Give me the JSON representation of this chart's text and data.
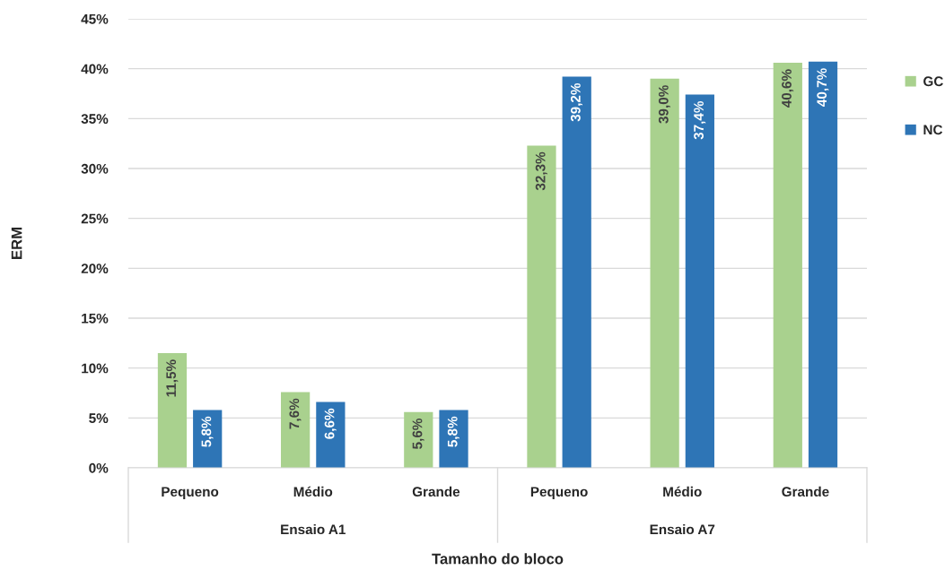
{
  "chart_data": {
    "type": "bar",
    "xlabel": "Tamanho do bloco",
    "ylabel": "ERM",
    "categories": [
      "Pequeno",
      "Médio",
      "Grande",
      "Pequeno",
      "Médio",
      "Grande"
    ],
    "annotations": [
      "Ensaio A1",
      "Ensaio A7"
    ],
    "series": [
      {
        "name": "GC",
        "color": "#a9d18e",
        "values": [
          11.5,
          7.6,
          5.6,
          32.3,
          39.0,
          40.6
        ],
        "value_labels": [
          "11,5%",
          "7,6%",
          "5,6%",
          "32,3%",
          "39,0%",
          "40,6%"
        ]
      },
      {
        "name": "NC",
        "color": "#2e75b6",
        "values": [
          5.8,
          6.6,
          5.8,
          39.2,
          37.4,
          40.7
        ],
        "value_labels": [
          "5,8%",
          "6,6%",
          "5,8%",
          "39,2%",
          "37,4%",
          "40,7%"
        ]
      }
    ],
    "ylim": [
      0,
      45
    ],
    "yticks": [
      {
        "value": 0,
        "label": "0%"
      },
      {
        "value": 5,
        "label": "5%"
      },
      {
        "value": 10,
        "label": "10%"
      },
      {
        "value": 15,
        "label": "15%"
      },
      {
        "value": 20,
        "label": "20%"
      },
      {
        "value": 25,
        "label": "25%"
      },
      {
        "value": 30,
        "label": "30%"
      },
      {
        "value": 35,
        "label": "35%"
      },
      {
        "value": 40,
        "label": "40%"
      },
      {
        "value": 45,
        "label": "45%"
      }
    ],
    "grid": "y",
    "legend": "right"
  }
}
